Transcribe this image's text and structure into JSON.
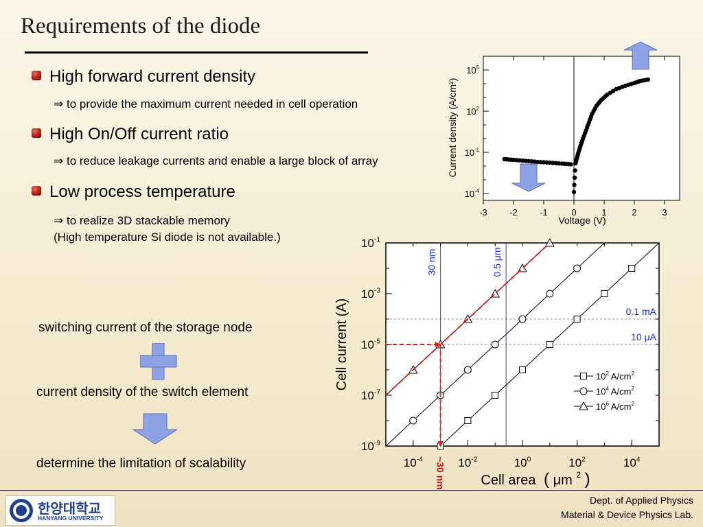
{
  "slide": {
    "title": "Requirements of the diode",
    "bullets": [
      {
        "heading": "High forward current density",
        "detail": "⇒ to provide the maximum current needed in cell operation"
      },
      {
        "heading": "High On/Off current ratio",
        "detail": "⇒ to reduce leakage currents and enable a large block of array"
      },
      {
        "heading": "Low process temperature",
        "detail": "⇒ to realize 3D stackable memory",
        "detail2": "(High temperature Si diode is not available.)"
      }
    ],
    "flow": {
      "step1": "switching current of the storage node",
      "step2": "current density of the switch element",
      "step3": "determine the limitation of scalability",
      "plus_icon": "plus-icon",
      "arrow_icon": "down-arrow-icon"
    },
    "colors": {
      "accent_blue": "#8ea3e6",
      "bullet_red": "#b21f14",
      "dashed_red": "#e02020",
      "line_blue": "#3a3ad0"
    }
  },
  "footer": {
    "logo_korean": "한양대학교",
    "logo_english": "HANYANG UNIVERSITY",
    "dept": "Dept. of Applied Physics",
    "lab": "Material & Device Physics Lab."
  },
  "chart_data": [
    {
      "type": "scatter",
      "xlabel": "Voltage (V)",
      "ylabel": "Current density (A/cm²)",
      "xlim": [
        -3,
        3.5
      ],
      "ylim_log10": [
        -4.5,
        6
      ],
      "yscale": "log",
      "xticks": [
        "-3",
        "-2",
        "-1",
        "0",
        "1",
        "2",
        "3"
      ],
      "yticks": [
        {
          "base": "10",
          "exp": "5"
        },
        {
          "base": "10",
          "exp": "2"
        },
        {
          "base": "10",
          "exp": "-1"
        },
        {
          "base": "10",
          "exp": "-4"
        }
      ],
      "series": [
        {
          "points": [
            [
              -2.3,
              -1.5
            ],
            [
              -2.0,
              -1.55
            ],
            [
              -1.6,
              -1.62
            ],
            [
              -1.2,
              -1.7
            ],
            [
              -0.8,
              -1.75
            ],
            [
              -0.4,
              -1.82
            ],
            [
              -0.1,
              -1.87
            ],
            [
              0.0,
              -3.9
            ],
            [
              0.05,
              -1.8
            ],
            [
              0.1,
              -1.4
            ],
            [
              0.15,
              -1.0
            ],
            [
              0.22,
              -0.5
            ],
            [
              0.3,
              0.0
            ],
            [
              0.4,
              0.6
            ],
            [
              0.5,
              1.2
            ],
            [
              0.6,
              1.8
            ],
            [
              0.75,
              2.4
            ],
            [
              0.9,
              2.8
            ],
            [
              1.1,
              3.2
            ],
            [
              1.4,
              3.6
            ],
            [
              1.7,
              3.85
            ],
            [
              2.0,
              4.05
            ],
            [
              2.2,
              4.2
            ],
            [
              2.45,
              4.3
            ]
          ]
        }
      ],
      "arrows": {
        "up": "up-arrow-icon",
        "down": "down-arrow-icon"
      }
    },
    {
      "type": "line",
      "xlabel": "Cell area",
      "xlabel_unit": {
        "paren_open": "(",
        "base": "μm",
        "exp": "2",
        "paren_close": ")"
      },
      "ylabel": "Cell current (A)",
      "xscale": "log",
      "yscale": "log",
      "xlim_log10": [
        -5,
        5
      ],
      "ylim_log10": [
        -9,
        -1
      ],
      "xticks": [
        {
          "base": "10",
          "exp": "-4"
        },
        {
          "base": "10",
          "exp": "-2"
        },
        {
          "base": "10",
          "exp": "0"
        },
        {
          "base": "10",
          "exp": "2"
        },
        {
          "base": "10",
          "exp": "4"
        }
      ],
      "yticks": [
        {
          "base": "10",
          "exp": "-1"
        },
        {
          "base": "10",
          "exp": "-3"
        },
        {
          "base": "10",
          "exp": "-5"
        },
        {
          "base": "10",
          "exp": "-7"
        },
        {
          "base": "10",
          "exp": "-9"
        }
      ],
      "series": [
        {
          "legend": {
            "base": "10",
            "exp": "2",
            "unit": " A/cm",
            "unit_exp": "2"
          },
          "marker": "square",
          "log_x": [
            -3,
            -2,
            -1,
            0,
            1,
            2,
            3,
            4
          ],
          "log_y": [
            -9,
            -8,
            -7,
            -6,
            -5,
            -4,
            -3,
            -2
          ]
        },
        {
          "legend": {
            "base": "10",
            "exp": "4",
            "unit": " A/cm",
            "unit_exp": "2"
          },
          "marker": "circle",
          "log_x": [
            -4,
            -3,
            -2,
            -1,
            0,
            1,
            2
          ],
          "log_y": [
            -8,
            -7,
            -6,
            -5,
            -4,
            -3,
            -2
          ]
        },
        {
          "legend": {
            "base": "10",
            "exp": "6",
            "unit": " A/cm",
            "unit_exp": "2"
          },
          "marker": "triangle",
          "log_x": [
            -4,
            -3,
            -2,
            -1,
            0,
            1
          ],
          "log_y": [
            -6,
            -5,
            -4,
            -3,
            -2,
            -1
          ]
        }
      ],
      "reference_lines": [
        {
          "label": "0.1 mA",
          "log_y": -4
        },
        {
          "label": "10 μA",
          "log_y": -5
        }
      ],
      "vertical_lines": [
        {
          "label": "30 nm",
          "log_x": -3
        },
        {
          "label": "0.5 μm",
          "log_x": -0.6
        }
      ],
      "annotation": "~30 nm"
    }
  ]
}
